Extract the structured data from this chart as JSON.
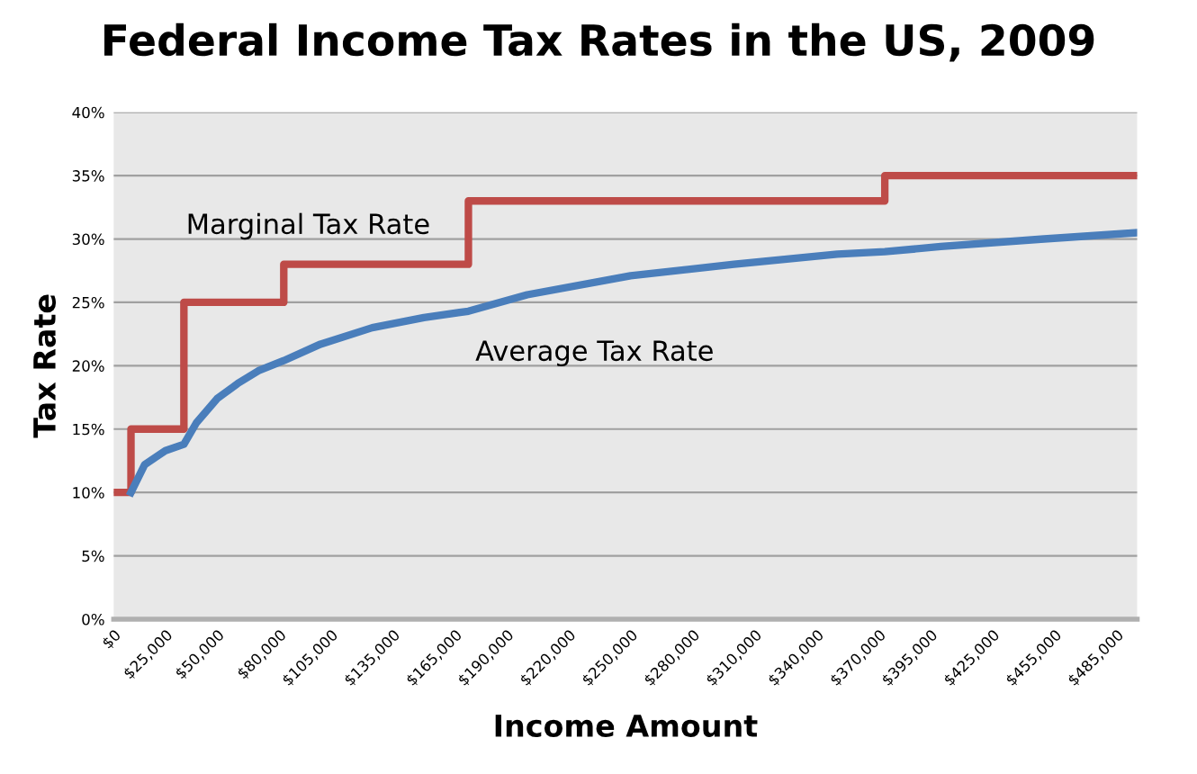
{
  "chart_data": {
    "type": "line",
    "title": "Federal Income Tax Rates in the US, 2009",
    "xlabel": "Income Amount",
    "ylabel": "Tax Rate",
    "series": [
      {
        "type": "step",
        "color": "#be4b48",
        "x": [
          0,
          8350,
          33950,
          82250,
          171550,
          372950,
          495000
        ],
        "values": [
          10,
          15,
          25,
          28,
          33,
          35,
          35
        ]
      },
      {
        "color": "#4a7ebb",
        "x": [
          8350,
          15000,
          25000,
          33950,
          40000,
          50000,
          60000,
          70000,
          82250,
          100000,
          125000,
          150000,
          171550,
          200000,
          250000,
          300000,
          350000,
          372950,
          400000,
          450000,
          495000
        ],
        "values": [
          10,
          12.2,
          13.3,
          13.8,
          15.5,
          17.4,
          18.6,
          19.6,
          20.4,
          21.7,
          23.0,
          23.8,
          24.3,
          25.6,
          27.1,
          28.0,
          28.8,
          29.0,
          29.4,
          30.0,
          30.5
        ]
      }
    ],
    "annotations": [
      "Marginal Tax Rate",
      "Average Tax Rate"
    ],
    "xlim": [
      0,
      495000
    ],
    "xticks": [
      {
        "value": 0,
        "label": "$0"
      },
      {
        "value": 25000,
        "label": "$25,000"
      },
      {
        "value": 50000,
        "label": "$50,000"
      },
      {
        "value": 80000,
        "label": "$80,000"
      },
      {
        "value": 105000,
        "label": "$105,000"
      },
      {
        "value": 135000,
        "label": "$135,000"
      },
      {
        "value": 165000,
        "label": "$165,000"
      },
      {
        "value": 190000,
        "label": "$190,000"
      },
      {
        "value": 220000,
        "label": "$220,000"
      },
      {
        "value": 250000,
        "label": "$250,000"
      },
      {
        "value": 280000,
        "label": "$280,000"
      },
      {
        "value": 310000,
        "label": "$310,000"
      },
      {
        "value": 340000,
        "label": "$340,000"
      },
      {
        "value": 370000,
        "label": "$370,000"
      },
      {
        "value": 395000,
        "label": "$395,000"
      },
      {
        "value": 425000,
        "label": "$425,000"
      },
      {
        "value": 455000,
        "label": "$455,000"
      },
      {
        "value": 485000,
        "label": "$485,000"
      }
    ],
    "ylim": [
      0,
      40
    ],
    "yticks": [
      {
        "value": 0,
        "label": "0%"
      },
      {
        "value": 5,
        "label": "5%"
      },
      {
        "value": 10,
        "label": "10%"
      },
      {
        "value": 15,
        "label": "15%"
      },
      {
        "value": 20,
        "label": "20%"
      },
      {
        "value": 25,
        "label": "25%"
      },
      {
        "value": 30,
        "label": "30%"
      },
      {
        "value": 35,
        "label": "35%"
      },
      {
        "value": 40,
        "label": "40%"
      }
    ],
    "grid": "y",
    "legend": false,
    "marker": "none"
  }
}
